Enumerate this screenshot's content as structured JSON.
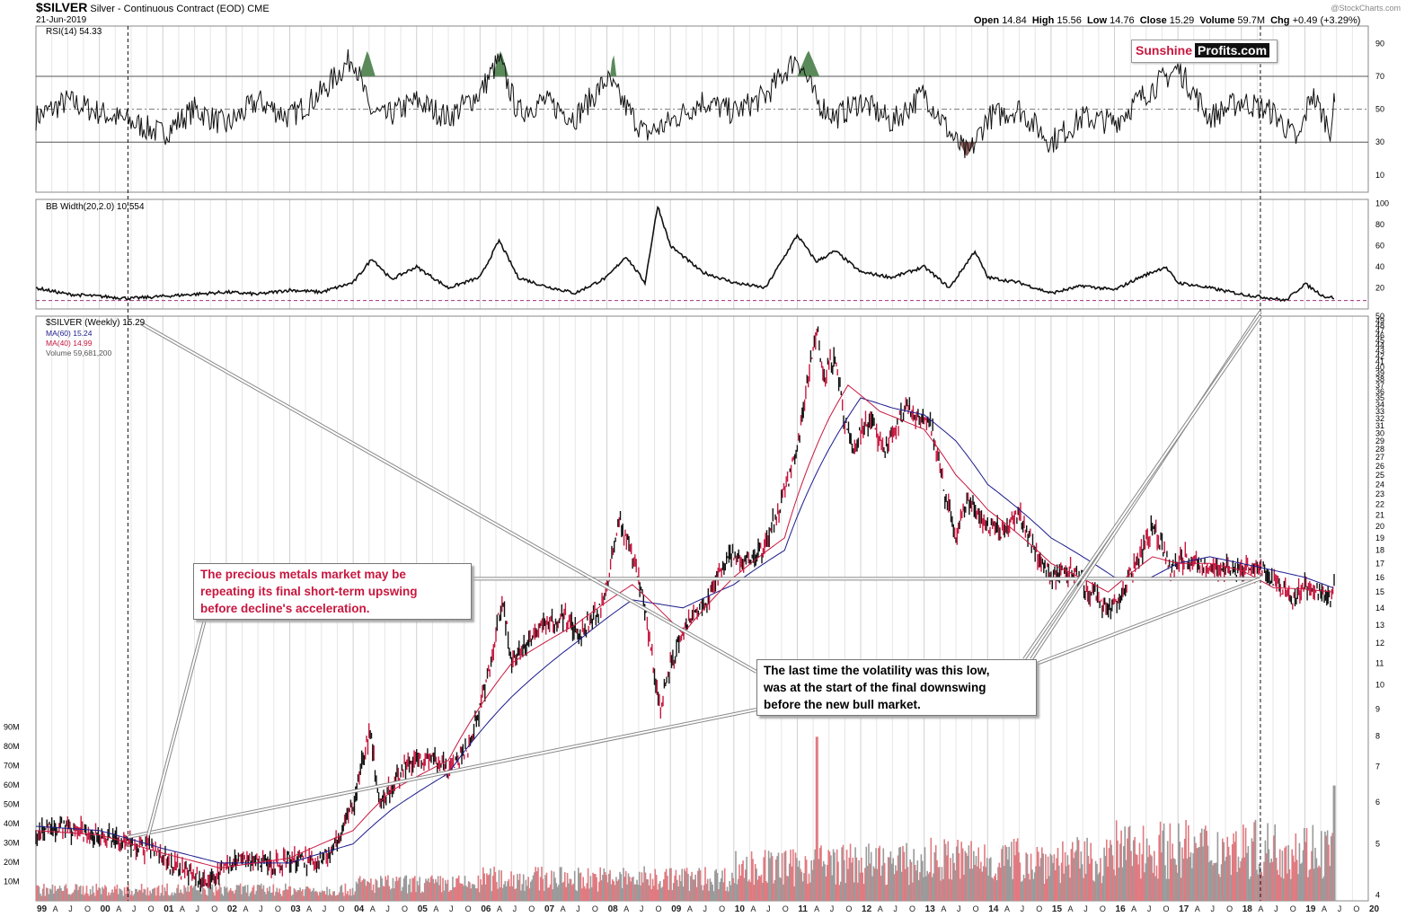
{
  "header": {
    "ticker": "$SILVER",
    "description": "Silver - Continuous Contract (EOD)",
    "exchange": "CME",
    "date": "21-Jun-2019",
    "watermark": "@StockCharts.com",
    "open_label": "Open",
    "open": "14.84",
    "high_label": "High",
    "high": "15.56",
    "low_label": "Low",
    "low": "14.76",
    "close_label": "Close",
    "close": "15.29",
    "volume_label": "Volume",
    "volume": "59.7M",
    "chg_label": "Chg",
    "chg": "+0.49 (+3.29%)"
  },
  "logo": {
    "part1": "Sunshine",
    "part2": "Profits.com"
  },
  "callouts": {
    "left": [
      "The precious metals market may be",
      "repeating its final short-term upswing",
      "before decline's acceleration."
    ],
    "right": [
      "The last time the volatility was this low,",
      "was at the start of the final downswing",
      "before the new bull market."
    ]
  },
  "colors": {
    "ma60": "#1a1a8c",
    "ma40": "#c8173f",
    "vol_up": "#9a9a9a",
    "vol_down": "#e07a80",
    "rsi_ob_fill": "#5a8a5a",
    "rsi_os_fill": "#8a5a55",
    "accent": "#c8173f"
  },
  "chart_data": [
    {
      "type": "line",
      "title": "RSI(14) 54.33",
      "legend": "RSI(14) 54.33",
      "ylim": [
        0,
        100
      ],
      "yticks": [
        10,
        30,
        50,
        70,
        90
      ],
      "reference_lines": [
        30,
        50,
        70
      ],
      "x": [
        1999.0,
        1999.5,
        2000.0,
        2000.5,
        2001.0,
        2001.5,
        2002.0,
        2002.5,
        2003.0,
        2003.5,
        2004.0,
        2004.25,
        2004.5,
        2005.0,
        2005.5,
        2006.0,
        2006.3,
        2006.6,
        2007.0,
        2007.5,
        2008.0,
        2008.6,
        2008.9,
        2009.5,
        2010.0,
        2010.5,
        2011.0,
        2011.3,
        2011.6,
        2012.0,
        2012.5,
        2013.0,
        2013.5,
        2013.7,
        2014.0,
        2014.5,
        2015.0,
        2015.5,
        2016.0,
        2016.5,
        2017.0,
        2017.5,
        2018.0,
        2018.5,
        2018.9,
        2019.1,
        2019.4,
        2019.47
      ],
      "values": [
        45,
        55,
        48,
        42,
        35,
        50,
        40,
        55,
        45,
        60,
        82,
        50,
        45,
        55,
        45,
        60,
        80,
        48,
        55,
        45,
        68,
        35,
        40,
        55,
        48,
        58,
        82,
        55,
        45,
        55,
        42,
        60,
        30,
        22,
        45,
        50,
        30,
        45,
        42,
        60,
        75,
        45,
        55,
        48,
        30,
        60,
        38,
        54.33
      ]
    },
    {
      "type": "line",
      "title": "BB Width(20,2.0) 10.554",
      "legend": "BB Width(20,2.0) 10.554",
      "ylim": [
        0,
        100
      ],
      "yticks": [
        20,
        40,
        60,
        80,
        100
      ],
      "reference_lines": [
        8
      ],
      "x": [
        1999.0,
        1999.5,
        2000.0,
        2000.5,
        2001.0,
        2001.5,
        2002.0,
        2002.5,
        2003.0,
        2003.5,
        2004.0,
        2004.3,
        2004.6,
        2005.0,
        2005.5,
        2006.0,
        2006.3,
        2006.6,
        2007.0,
        2007.5,
        2008.0,
        2008.3,
        2008.6,
        2008.8,
        2009.0,
        2009.5,
        2010.0,
        2010.5,
        2011.0,
        2011.3,
        2011.6,
        2012.0,
        2012.5,
        2013.0,
        2013.4,
        2013.8,
        2014.0,
        2014.5,
        2015.0,
        2015.5,
        2016.0,
        2016.4,
        2016.8,
        2017.0,
        2017.5,
        2018.0,
        2018.5,
        2018.7,
        2019.0,
        2019.3,
        2019.47
      ],
      "values": [
        20,
        14,
        12,
        10,
        12,
        14,
        16,
        14,
        18,
        16,
        25,
        48,
        28,
        40,
        20,
        30,
        65,
        30,
        22,
        15,
        30,
        50,
        25,
        98,
        60,
        35,
        25,
        20,
        70,
        45,
        55,
        35,
        30,
        40,
        20,
        55,
        30,
        25,
        15,
        22,
        18,
        30,
        40,
        25,
        20,
        14,
        10,
        8,
        24,
        12,
        10.554
      ]
    },
    {
      "type": "line",
      "title": "$SILVER (Weekly) 15.29",
      "legend": [
        "$SILVER (Weekly) 15.29",
        "MA(60) 15.24",
        "MA(40) 14.99",
        "Volume 59,681,200"
      ],
      "xlabel": "",
      "ylabel": "",
      "yscale": "log",
      "ylim": [
        3.9,
        50
      ],
      "yticks": [
        4,
        5,
        6,
        7,
        8,
        9,
        10,
        11,
        12,
        13,
        14,
        15,
        16,
        17,
        18,
        19,
        20,
        21,
        22,
        23,
        24,
        25,
        26,
        27,
        28,
        29,
        30,
        31,
        32,
        33,
        34,
        35,
        36,
        37,
        38,
        39,
        40,
        41,
        42,
        43,
        44,
        45,
        46,
        47,
        48,
        49,
        50
      ],
      "volume_ticks": [
        "10M",
        "20M",
        "30M",
        "40M",
        "50M",
        "60M",
        "70M",
        "80M",
        "90M"
      ],
      "x_tick_labels": [
        "99",
        "A",
        "J",
        "O",
        "00",
        "A",
        "J",
        "O",
        "01",
        "A",
        "J",
        "O",
        "02",
        "A",
        "J",
        "O",
        "03",
        "A",
        "J",
        "O",
        "04",
        "A",
        "J",
        "O",
        "05",
        "A",
        "J",
        "O",
        "06",
        "A",
        "J",
        "O",
        "07",
        "A",
        "J",
        "O",
        "08",
        "A",
        "J",
        "O",
        "09",
        "A",
        "J",
        "O",
        "10",
        "A",
        "J",
        "O",
        "11",
        "A",
        "J",
        "O",
        "12",
        "A",
        "J",
        "O",
        "13",
        "A",
        "J",
        "O",
        "14",
        "A",
        "J",
        "O",
        "15",
        "A",
        "J",
        "O",
        "16",
        "A",
        "J",
        "O",
        "17",
        "A",
        "J",
        "O",
        "18",
        "A",
        "J",
        "O",
        "19",
        "A",
        "J",
        "O",
        "20"
      ],
      "series": [
        {
          "name": "$SILVER (Weekly)",
          "x": [
            1999.0,
            1999.3,
            1999.6,
            1999.9,
            2000.2,
            2000.5,
            2000.8,
            2001.1,
            2001.4,
            2001.7,
            2001.9,
            2002.2,
            2002.5,
            2002.8,
            2003.1,
            2003.4,
            2003.7,
            2004.0,
            2004.27,
            2004.4,
            2004.6,
            2004.9,
            2005.2,
            2005.5,
            2005.8,
            2006.0,
            2006.2,
            2006.35,
            2006.5,
            2006.8,
            2007.0,
            2007.3,
            2007.6,
            2007.9,
            2008.0,
            2008.2,
            2008.4,
            2008.6,
            2008.75,
            2008.85,
            2009.0,
            2009.3,
            2009.6,
            2009.9,
            2010.2,
            2010.5,
            2010.8,
            2011.0,
            2011.1,
            2011.32,
            2011.4,
            2011.6,
            2011.72,
            2011.9,
            2012.1,
            2012.4,
            2012.7,
            2012.9,
            2013.1,
            2013.3,
            2013.5,
            2013.7,
            2013.9,
            2014.2,
            2014.5,
            2014.8,
            2015.0,
            2015.3,
            2015.6,
            2015.9,
            2016.1,
            2016.4,
            2016.6,
            2016.9,
            2017.1,
            2017.4,
            2017.7,
            2017.95,
            2018.2,
            2018.5,
            2018.8,
            2019.0,
            2019.2,
            2019.4,
            2019.47
          ],
          "values": [
            5.2,
            5.4,
            5.3,
            5.2,
            5.1,
            5.0,
            4.9,
            4.6,
            4.4,
            4.2,
            4.5,
            4.7,
            4.6,
            4.6,
            4.7,
            4.6,
            4.9,
            5.9,
            8.2,
            6.0,
            6.4,
            7.2,
            7.3,
            7.0,
            7.5,
            9.0,
            11.5,
            14.5,
            11.0,
            12.5,
            13.0,
            13.5,
            12.5,
            14.0,
            15.5,
            20.5,
            17.5,
            14.0,
            10.5,
            9.0,
            11.0,
            13.5,
            14.5,
            17.5,
            17.0,
            18.5,
            23.0,
            28.0,
            34.0,
            47.5,
            38.0,
            42.0,
            33.0,
            28.0,
            32.0,
            28.0,
            33.5,
            32.0,
            31.5,
            23.5,
            19.5,
            22.5,
            20.5,
            19.5,
            21.0,
            17.0,
            16.0,
            16.5,
            15.0,
            14.0,
            14.8,
            17.5,
            20.0,
            16.5,
            17.5,
            16.8,
            16.7,
            16.5,
            16.8,
            16.0,
            14.5,
            15.5,
            15.0,
            14.5,
            15.29
          ]
        },
        {
          "name": "MA(60)",
          "x": [
            1999.0,
            2000.0,
            2001.0,
            2001.9,
            2003.0,
            2004.0,
            2004.6,
            2005.5,
            2006.5,
            2007.5,
            2008.4,
            2009.2,
            2010.0,
            2010.8,
            2011.5,
            2012.0,
            2012.5,
            2013.0,
            2013.5,
            2014.0,
            2015.0,
            2016.0,
            2016.5,
            2017.0,
            2017.5,
            2018.0,
            2018.5,
            2019.0,
            2019.47
          ],
          "values": [
            5.4,
            5.3,
            4.9,
            4.6,
            4.6,
            5.0,
            5.8,
            6.8,
            9.5,
            12.0,
            14.5,
            14.0,
            15.5,
            18.0,
            28.0,
            35.0,
            33.5,
            32.5,
            29.0,
            24.0,
            19.0,
            16.0,
            15.8,
            17.0,
            17.5,
            17.0,
            16.5,
            16.0,
            15.24
          ]
        },
        {
          "name": "MA(40)",
          "x": [
            1999.0,
            2000.0,
            2001.0,
            2001.9,
            2003.0,
            2004.0,
            2004.6,
            2005.5,
            2006.5,
            2007.5,
            2008.4,
            2009.2,
            2010.0,
            2010.8,
            2011.5,
            2011.8,
            2012.3,
            2013.0,
            2013.5,
            2014.0,
            2015.0,
            2015.9,
            2016.6,
            2017.0,
            2017.5,
            2018.0,
            2018.5,
            2019.0,
            2019.47
          ],
          "values": [
            5.3,
            5.2,
            4.8,
            4.5,
            4.7,
            5.3,
            6.3,
            7.2,
            11.0,
            13.0,
            15.5,
            12.5,
            16.0,
            19.0,
            32.0,
            37.0,
            33.0,
            30.5,
            25.0,
            21.5,
            17.0,
            15.0,
            17.5,
            17.0,
            17.0,
            16.5,
            15.3,
            15.2,
            14.99
          ]
        }
      ],
      "vertical_markers": [
        2000.45,
        2018.3
      ],
      "trendline": [
        {
          "x": 2000.45,
          "y": 5.15
        },
        {
          "x": 2018.3,
          "y": 15.9
        }
      ],
      "horizontal_line": 15.9
    }
  ]
}
